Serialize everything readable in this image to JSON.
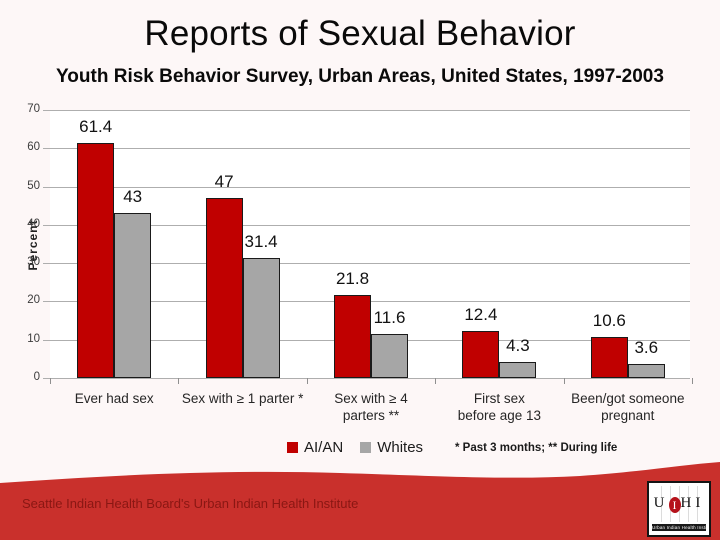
{
  "slide": {
    "title": "Reports of Sexual Behavior",
    "subtitle": "Youth Risk Behavior Survey, Urban Areas, United States, 1997-2003"
  },
  "chart_data": {
    "type": "bar",
    "title": "Reports of Sexual Behavior",
    "xlabel": "",
    "ylabel": "Percent",
    "ylim": [
      0,
      70
    ],
    "ytick_step": 10,
    "grid": true,
    "legend_position": "bottom",
    "categories": [
      "Ever had sex",
      "Sex with ≥ 1 parter *",
      "Sex with ≥ 4\nparters **",
      "First sex\nbefore age 13",
      "Been/got someone\npregnant"
    ],
    "series": [
      {
        "name": "AI/AN",
        "color": "#c00000",
        "values": [
          61.4,
          47,
          21.8,
          12.4,
          10.6
        ]
      },
      {
        "name": "Whites",
        "color": "#a6a6a6",
        "values": [
          43,
          31.4,
          11.6,
          4.3,
          3.6
        ]
      }
    ],
    "footnote": "* Past 3 months; ** During life"
  },
  "footer": {
    "text": "Seattle Indian Health Board's Urban Indian Health Institute",
    "logo": {
      "letters_pre": "U",
      "letter_oval": "I",
      "letters_post": "HI",
      "caption": "Urban Indian Health Institute"
    }
  },
  "colors": {
    "slide_background": "#fdf7f7",
    "bar_red": "#c00000",
    "bar_gray": "#a6a6a6",
    "gridline": "#aeaeae",
    "footer_red": "#c9302c",
    "footer_text": "#8a1713",
    "logo_oval_red": "#b5121b"
  }
}
